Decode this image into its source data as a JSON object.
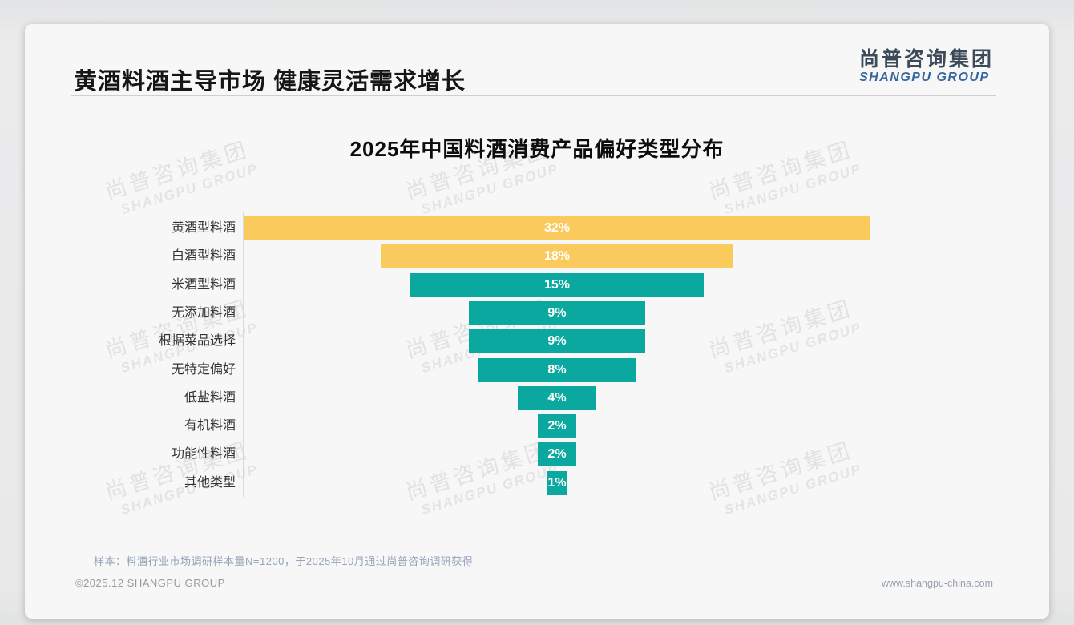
{
  "slide": {
    "header_title": "黄酒料酒主导市场 健康灵活需求增长",
    "logo": {
      "cn": "尚普咨询集团",
      "en": "SHANGPU GROUP"
    },
    "watermark": {
      "cn": "尚普咨询集团",
      "en": "SHANGPU GROUP"
    },
    "footnote": "样本：料酒行业市场调研样本量N=1200，于2025年10月通过尚普咨询调研获得",
    "footer": {
      "copyright": "©2025.12 SHANGPU GROUP",
      "website": "www.shangpu-china.com"
    }
  },
  "chart_data": {
    "type": "bar",
    "orientation": "horizontal",
    "layout": "centered-funnel",
    "title": "2025年中国料酒消费产品偏好类型分布",
    "unit": "%",
    "categories": [
      "黄酒型料酒",
      "白酒型料酒",
      "米酒型料酒",
      "无添加料酒",
      "根据菜品选择",
      "无特定偏好",
      "低盐料酒",
      "有机料酒",
      "功能性料酒",
      "其他类型"
    ],
    "values": [
      32,
      18,
      15,
      9,
      9,
      8,
      4,
      2,
      2,
      1
    ],
    "value_labels": [
      "32%",
      "18%",
      "15%",
      "9%",
      "9%",
      "8%",
      "4%",
      "2%",
      "2%",
      "1%"
    ],
    "bar_colors": [
      "#fbca5c",
      "#fbca5c",
      "#0ba8a0",
      "#0ba8a0",
      "#0ba8a0",
      "#0ba8a0",
      "#0ba8a0",
      "#0ba8a0",
      "#0ba8a0",
      "#0ba8a0"
    ],
    "colors": {
      "highlight": "#fbca5c",
      "normal": "#0ba8a0",
      "value_text": "#ffffff"
    },
    "xlim": [
      0,
      32
    ],
    "legend": false,
    "grid": false,
    "value_label_position": "center"
  }
}
